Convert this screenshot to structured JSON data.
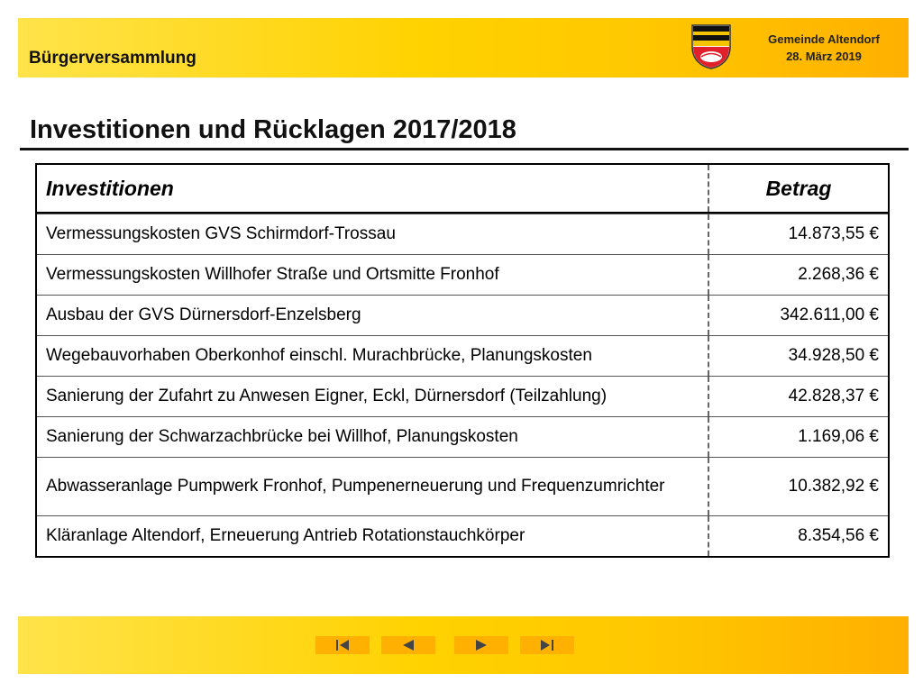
{
  "header": {
    "event": "Bürgerversammlung",
    "municipality": "Gemeinde Altendorf",
    "date": "28. März 2019"
  },
  "title": "Investitionen und Rücklagen 2017/2018",
  "table": {
    "columns": [
      "Investitionen",
      "Betrag"
    ],
    "rows": [
      {
        "item": "Vermessungskosten GVS Schirmdorf-Trossau",
        "amount": "14.873,55 €"
      },
      {
        "item": "Vermessungskosten Willhofer Straße und Ortsmitte Fronhof",
        "amount": "2.268,36 €"
      },
      {
        "item": "Ausbau der GVS Dürnersdorf-Enzelsberg",
        "amount": "342.611,00 €"
      },
      {
        "item": "Wegebauvorhaben Oberkonhof einschl. Murachbrücke, Planungskosten",
        "amount": "34.928,50 €"
      },
      {
        "item": "Sanierung der Zufahrt zu Anwesen Eigner, Eckl, Dürnersdorf (Teilzahlung)",
        "amount": "42.828,37 €"
      },
      {
        "item": "Sanierung der Schwarzachbrücke bei Willhof, Planungskosten",
        "amount": "1.169,06 €"
      },
      {
        "item": "Abwasseranlage Pumpwerk Fronhof, Pumpenerneuerung und Frequenzumrichter",
        "amount": "10.382,92 €"
      },
      {
        "item": "Kläranlage Altendorf, Erneuerung Antrieb Rotationstauchkörper",
        "amount": "8.354,56 €"
      }
    ]
  },
  "navigation": {
    "icons": [
      "first-slide-icon",
      "previous-slide-icon",
      "next-slide-icon",
      "last-slide-icon"
    ]
  },
  "colors": {
    "band_start": "#ffe34a",
    "band_end": "#ffb000",
    "nav_button": "#ffb000",
    "coat_red": "#e0202a",
    "coat_black": "#111111"
  }
}
